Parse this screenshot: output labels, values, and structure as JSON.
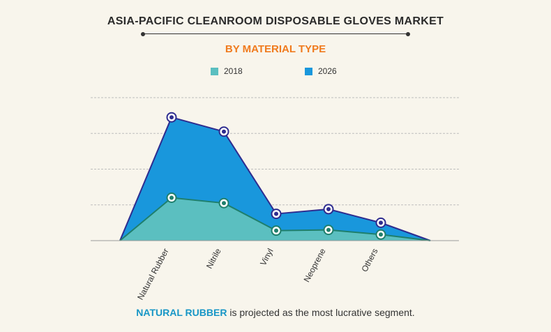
{
  "header": {
    "title": "ASIA-PACIFIC CLEANROOM DISPOSABLE GLOVES MARKET",
    "subtitle": "BY MATERIAL TYPE"
  },
  "footnote": {
    "highlight": "NATURAL RUBBER",
    "rest": " is projected as the most lucrative segment."
  },
  "colors": {
    "s2018_fill": "#5bbfc0",
    "s2018_line": "#1f7f6c",
    "s2026_fill": "#1997dc",
    "s2026_line": "#2e2c8f",
    "title": "#2b2b2b",
    "subtitle": "#f07b1e",
    "grid": "#bdbdbd"
  },
  "chart_data": {
    "type": "area",
    "categories": [
      "Natural Rubber",
      "Nitrile",
      "Vinyl",
      "Neoprene",
      "Others"
    ],
    "series": [
      {
        "name": "2018",
        "values": [
          1.2,
          1.05,
          0.28,
          0.3,
          0.17
        ]
      },
      {
        "name": "2026",
        "values": [
          3.45,
          3.05,
          0.75,
          0.88,
          0.5
        ]
      }
    ],
    "ylim": [
      0,
      4
    ],
    "grid": true,
    "legend": "top-center",
    "xlabel": "",
    "ylabel": ""
  }
}
